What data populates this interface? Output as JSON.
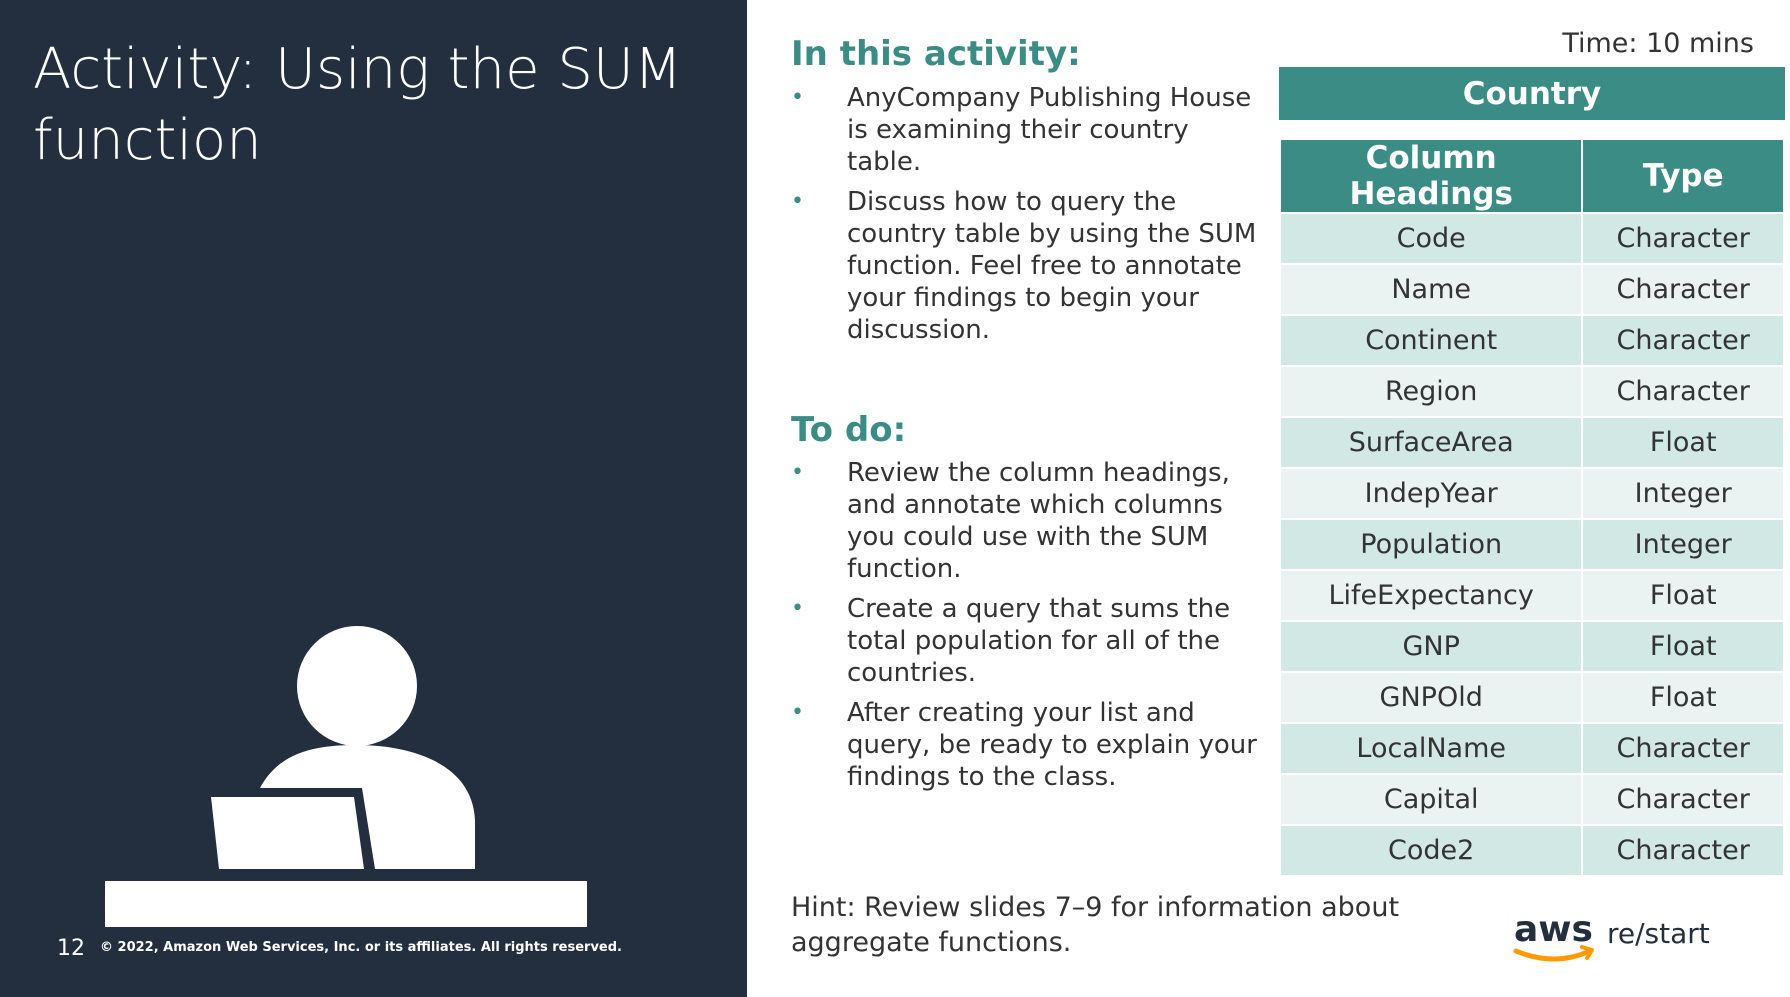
{
  "slide": {
    "title": "Activity: Using the SUM function",
    "page_number": "12",
    "copyright": "© 2022, Amazon Web Services, Inc. or its affiliates. All rights reserved.",
    "time": "Time: 10 mins"
  },
  "activity": {
    "heading": "In this activity:",
    "bullets": [
      "AnyCompany Publishing House is examining their country table.",
      "Discuss how to query the country table by using the SUM function. Feel free to annotate your findings to begin your discussion."
    ]
  },
  "todo": {
    "heading": "To do:",
    "bullets": [
      "Review the column headings, and annotate which columns you could use with the SUM function.",
      "Create a query that sums the total population for all of the countries.",
      "After creating your list and query, be ready to explain your findings to the class."
    ]
  },
  "hint": "Hint: Review slides 7–9 for information about aggregate functions.",
  "table": {
    "title": "Country",
    "headers": [
      "Column Headings",
      "Type"
    ],
    "rows": [
      [
        "Code",
        "Character"
      ],
      [
        "Name",
        "Character"
      ],
      [
        "Continent",
        "Character"
      ],
      [
        "Region",
        "Character"
      ],
      [
        "SurfaceArea",
        "Float"
      ],
      [
        "IndepYear",
        "Integer"
      ],
      [
        "Population",
        "Integer"
      ],
      [
        "LifeExpectancy",
        "Float"
      ],
      [
        "GNP",
        "Float"
      ],
      [
        "GNPOld",
        "Float"
      ],
      [
        "LocalName",
        "Character"
      ],
      [
        "Capital",
        "Character"
      ],
      [
        "Code2",
        "Character"
      ]
    ]
  },
  "branding": {
    "aws": "aws",
    "restart": "re/start"
  },
  "colors": {
    "left_panel": "#232F3E",
    "accent_teal": "#3A8C85",
    "row_dark": "#D2E8E4",
    "row_light": "#EAF3F1",
    "aws_orange": "#FF9900"
  },
  "icons": [
    "person-at-laptop-icon",
    "bullet-dot-icon",
    "aws-smile-icon"
  ]
}
